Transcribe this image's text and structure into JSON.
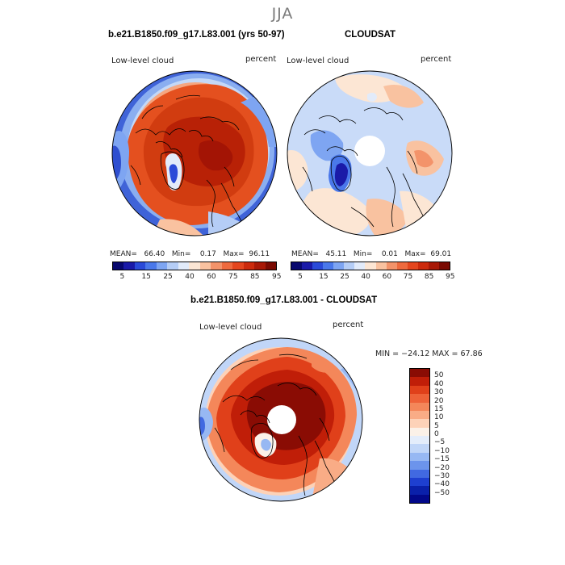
{
  "season": "JJA",
  "panel_top_left": {
    "title": "b.e21.B1850.f09_g17.L83.001 (yrs 50-97)",
    "left_label": "Low-level cloud",
    "right_label": "percent",
    "mean_label": "MEAN=",
    "mean": "66.40",
    "min_label": "Min=",
    "min": "0.17",
    "max_label": "Max=",
    "max": "96.11"
  },
  "panel_top_right": {
    "title": "CLOUDSAT",
    "left_label": "Low-level cloud",
    "right_label": "percent",
    "mean_label": "MEAN=",
    "mean": "45.11",
    "min_label": "Min=",
    "min": "0.01",
    "max_label": "Max=",
    "max": "69.01"
  },
  "panel_bottom": {
    "title": "b.e21.B1850.f09_g17.L83.001 - CLOUDSAT",
    "left_label": "Low-level cloud",
    "right_label": "percent",
    "minmax_text": "MIN = −24.12 MAX =   67.86"
  },
  "colorbar_top": {
    "labels": [
      "5",
      "15",
      "25",
      "40",
      "60",
      "75",
      "85",
      "95"
    ],
    "colors": [
      "#08086e",
      "#1a1aa8",
      "#2a4ad8",
      "#4a78ea",
      "#7ea5f2",
      "#b5cdf6",
      "#e2ebfa",
      "#fce6d4",
      "#f9c2a0",
      "#f3936a",
      "#ee6a3e",
      "#e4461e",
      "#cc2a0c",
      "#a81806",
      "#7a0a02"
    ]
  },
  "colorbar_bottom": {
    "labels": [
      "50",
      "40",
      "30",
      "20",
      "15",
      "10",
      "5",
      "0",
      "−5",
      "−10",
      "−15",
      "−20",
      "−30",
      "−40",
      "−50"
    ],
    "colors": [
      "#8a0c04",
      "#c01e08",
      "#e0401a",
      "#ee6238",
      "#f4875a",
      "#f9ac86",
      "#fdd2b8",
      "#fbf1e8",
      "#e4edfb",
      "#c1d6f8",
      "#97b8f3",
      "#6c94ec",
      "#4169e1",
      "#1e3fd0",
      "#0a20aa",
      "#02088a"
    ]
  }
}
